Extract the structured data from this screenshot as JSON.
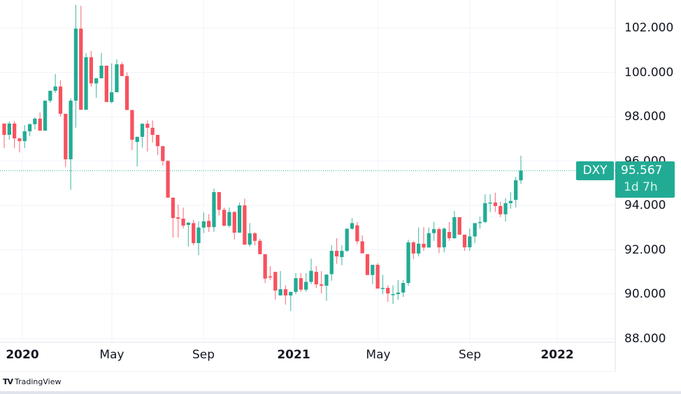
{
  "symbol": "DXY",
  "last_price": "95.567",
  "countdown": "1d 7h",
  "logo_text": "TradingView",
  "colors": {
    "up": "#22ab94",
    "down": "#f7525f",
    "grid": "#f0f3fa",
    "price_line": "#22ab94"
  },
  "chart_data": {
    "type": "candlestick",
    "interval": "weekly",
    "ylim": [
      88,
      103.3
    ],
    "y_ticks": [
      "102.000",
      "100.000",
      "98.000",
      "96.000",
      "94.000",
      "92.000",
      "90.000",
      "88.000"
    ],
    "x_ticks": [
      "2020",
      "May",
      "Sep",
      "2021",
      "May",
      "Sep",
      "2022"
    ],
    "grid": true,
    "last_value": 95.567,
    "ohlc": [
      [
        97.69,
        97.69,
        96.58,
        97.18
      ],
      [
        97.18,
        97.78,
        96.96,
        97.69
      ],
      [
        97.69,
        97.81,
        96.58,
        97.02
      ],
      [
        97.02,
        97.05,
        96.39,
        96.9
      ],
      [
        96.9,
        97.62,
        96.58,
        97.34
      ],
      [
        97.34,
        97.69,
        97.12,
        97.66
      ],
      [
        97.66,
        97.97,
        97.43,
        97.91
      ],
      [
        97.91,
        98.19,
        97.37,
        97.37
      ],
      [
        97.37,
        98.72,
        97.37,
        98.72
      ],
      [
        98.72,
        99.17,
        98.63,
        99.17
      ],
      [
        99.17,
        99.92,
        99.07,
        99.36
      ],
      [
        99.36,
        99.64,
        98.0,
        98.13
      ],
      [
        98.13,
        98.13,
        95.73,
        96.08
      ],
      [
        96.08,
        98.82,
        94.7,
        98.72
      ],
      [
        98.72,
        103.04,
        97.5,
        101.97
      ],
      [
        101.97,
        103.0,
        98.31,
        98.31
      ],
      [
        98.31,
        100.87,
        98.31,
        100.68
      ],
      [
        100.68,
        100.96,
        99.35,
        99.5
      ],
      [
        99.5,
        99.73,
        98.85,
        99.73
      ],
      [
        99.73,
        100.87,
        99.73,
        100.3
      ],
      [
        100.3,
        100.3,
        98.66,
        98.66
      ],
      [
        98.66,
        100.4,
        98.6,
        99.1
      ],
      [
        99.1,
        100.58,
        99.1,
        100.36
      ],
      [
        100.36,
        100.45,
        99.83,
        99.83
      ],
      [
        99.83,
        100.0,
        98.3,
        98.3
      ],
      [
        98.3,
        98.3,
        96.49,
        96.96
      ],
      [
        96.86,
        97.1,
        95.76,
        97.09
      ],
      [
        97.09,
        97.7,
        96.6,
        97.68
      ],
      [
        97.68,
        97.83,
        96.43,
        97.5
      ],
      [
        97.5,
        97.83,
        96.84,
        97.18
      ],
      [
        97.18,
        97.18,
        96.27,
        96.67
      ],
      [
        96.67,
        96.67,
        95.8,
        96.0
      ],
      [
        96.0,
        96.05,
        94.35,
        94.35
      ],
      [
        94.35,
        94.35,
        92.55,
        93.43
      ],
      [
        93.46,
        94.03,
        92.55,
        93.4
      ],
      [
        93.4,
        93.9,
        92.96,
        93.09
      ],
      [
        93.12,
        93.25,
        92.14,
        93.22
      ],
      [
        93.2,
        93.35,
        92.2,
        92.3
      ],
      [
        92.3,
        93.28,
        91.76,
        93.0
      ],
      [
        93.0,
        93.68,
        92.75,
        93.28
      ],
      [
        93.3,
        93.6,
        92.8,
        93.02
      ],
      [
        93.02,
        94.76,
        92.8,
        94.6
      ],
      [
        94.6,
        94.6,
        93.55,
        93.8
      ],
      [
        93.8,
        93.9,
        93.08,
        93.08
      ],
      [
        93.08,
        93.9,
        93.0,
        93.7
      ],
      [
        93.7,
        93.75,
        92.46,
        92.77
      ],
      [
        92.77,
        94.13,
        92.77,
        94.0
      ],
      [
        94.0,
        94.3,
        92.23,
        92.23
      ],
      [
        92.23,
        93.2,
        92.14,
        92.74
      ],
      [
        92.74,
        92.8,
        92.2,
        92.4
      ],
      [
        92.4,
        92.5,
        91.8,
        91.8
      ],
      [
        91.8,
        91.8,
        90.5,
        90.7
      ],
      [
        90.8,
        91.26,
        90.64,
        90.75
      ],
      [
        91.0,
        91.0,
        89.75,
        90.16
      ],
      [
        89.94,
        91.04,
        89.94,
        90.22
      ],
      [
        90.22,
        90.4,
        89.53,
        89.94
      ],
      [
        89.94,
        90.1,
        89.24,
        90.1
      ],
      [
        90.1,
        90.95,
        90.0,
        90.72
      ],
      [
        90.72,
        90.95,
        90.1,
        90.2
      ],
      [
        90.2,
        90.95,
        90.1,
        90.55
      ],
      [
        90.55,
        91.6,
        90.45,
        91.05
      ],
      [
        91.0,
        91.26,
        90.28,
        90.44
      ],
      [
        90.44,
        91.04,
        90.03,
        90.38
      ],
      [
        90.38,
        90.88,
        89.7,
        90.88
      ],
      [
        90.9,
        92.2,
        90.6,
        91.95
      ],
      [
        91.95,
        92.52,
        91.37,
        91.7
      ],
      [
        91.67,
        92.2,
        91.3,
        91.95
      ],
      [
        91.95,
        92.95,
        91.9,
        92.95
      ],
      [
        92.95,
        93.43,
        92.9,
        93.2
      ],
      [
        93.1,
        93.25,
        92.25,
        92.38
      ],
      [
        92.38,
        92.65,
        91.84,
        91.84
      ],
      [
        91.8,
        91.8,
        90.86,
        90.86
      ],
      [
        90.86,
        91.32,
        90.45,
        91.32
      ],
      [
        91.32,
        91.4,
        90.25,
        90.25
      ],
      [
        90.25,
        90.87,
        90.0,
        90.28
      ],
      [
        90.28,
        90.4,
        89.65,
        90.03
      ],
      [
        89.98,
        90.4,
        89.56,
        90.0
      ],
      [
        90.0,
        90.63,
        89.75,
        90.07
      ],
      [
        90.07,
        90.63,
        89.87,
        90.5
      ],
      [
        90.5,
        92.45,
        90.37,
        92.33
      ],
      [
        92.33,
        92.4,
        91.58,
        91.83
      ],
      [
        91.83,
        93.0,
        91.7,
        92.27
      ],
      [
        92.27,
        93.03,
        91.95,
        92.1
      ],
      [
        92.1,
        93.0,
        92.1,
        92.75
      ],
      [
        92.75,
        93.25,
        92.4,
        92.93
      ],
      [
        92.93,
        93.0,
        91.85,
        92.11
      ],
      [
        92.11,
        93.0,
        91.88,
        92.95
      ],
      [
        92.8,
        93.25,
        92.4,
        92.52
      ],
      [
        92.52,
        93.75,
        92.5,
        93.47
      ],
      [
        93.47,
        93.47,
        92.68,
        92.68
      ],
      [
        92.68,
        92.68,
        91.95,
        92.11
      ],
      [
        92.11,
        92.95,
        91.95,
        92.6
      ],
      [
        92.6,
        93.2,
        92.3,
        93.2
      ],
      [
        93.2,
        93.49,
        92.95,
        93.25
      ],
      [
        93.25,
        94.5,
        93.2,
        94.1
      ],
      [
        94.1,
        94.5,
        93.7,
        94.13
      ],
      [
        94.13,
        94.57,
        93.7,
        93.97
      ],
      [
        93.97,
        94.17,
        93.47,
        93.6
      ],
      [
        93.6,
        94.32,
        93.27,
        94.1
      ],
      [
        94.1,
        94.6,
        93.85,
        94.2
      ],
      [
        94.25,
        95.28,
        93.9,
        95.13
      ],
      [
        95.13,
        96.24,
        94.97,
        95.567
      ]
    ]
  }
}
